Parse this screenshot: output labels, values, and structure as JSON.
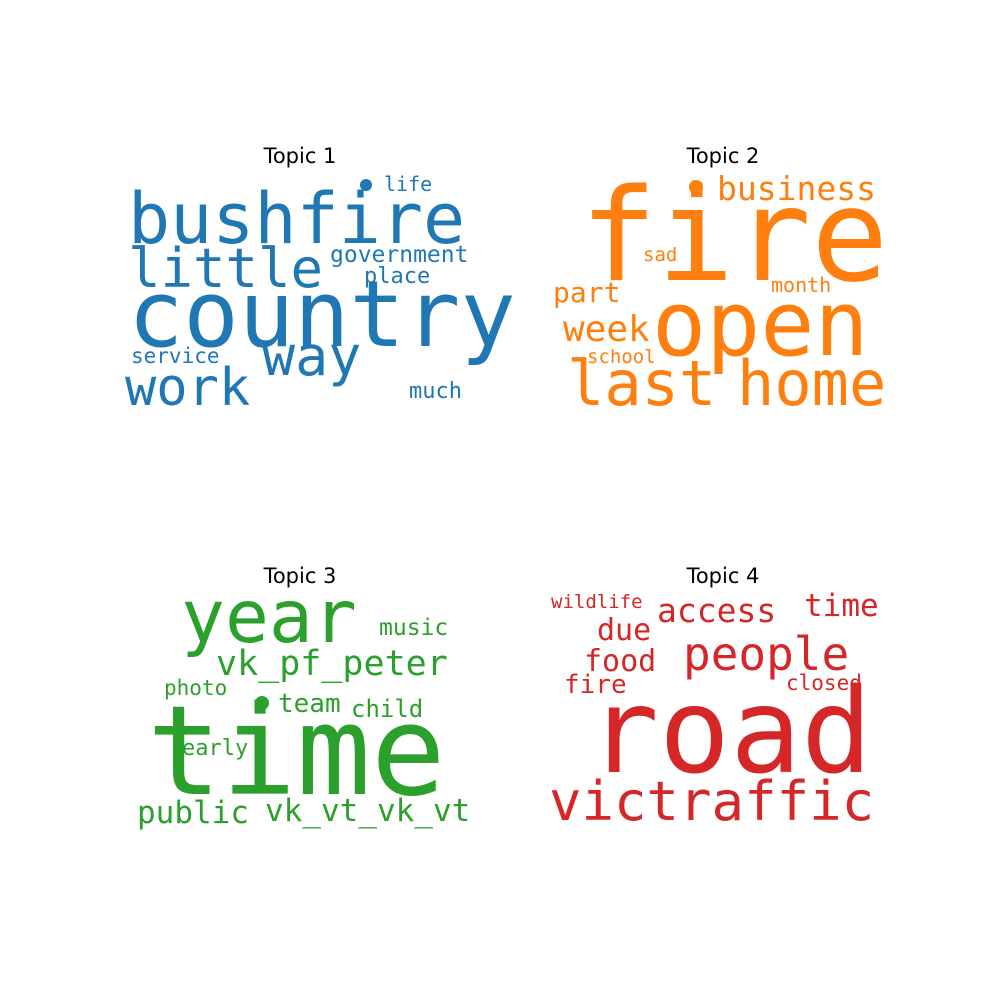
{
  "chart_data": [
    {
      "type": "wordcloud",
      "title": "Topic 1",
      "color": "#1f77b4",
      "words": [
        {
          "text": "country",
          "weight": 1.0
        },
        {
          "text": "bushfire",
          "weight": 0.88
        },
        {
          "text": "little",
          "weight": 0.66
        },
        {
          "text": "way",
          "weight": 0.62
        },
        {
          "text": "work",
          "weight": 0.58
        },
        {
          "text": "government",
          "weight": 0.3
        },
        {
          "text": "place",
          "weight": 0.27
        },
        {
          "text": "life",
          "weight": 0.26
        },
        {
          "text": "service",
          "weight": 0.26
        },
        {
          "text": "much",
          "weight": 0.26
        }
      ]
    },
    {
      "type": "wordcloud",
      "title": "Topic 2",
      "color": "#ff7f0e",
      "words": [
        {
          "text": "fire",
          "weight": 1.0
        },
        {
          "text": "open",
          "weight": 0.78
        },
        {
          "text": "home",
          "weight": 0.53
        },
        {
          "text": "last",
          "weight": 0.53
        },
        {
          "text": "week",
          "weight": 0.32
        },
        {
          "text": "business",
          "weight": 0.3
        },
        {
          "text": "part",
          "weight": 0.27
        },
        {
          "text": "month",
          "weight": 0.2
        },
        {
          "text": "school",
          "weight": 0.2
        },
        {
          "text": "sad",
          "weight": 0.19
        }
      ]
    },
    {
      "type": "wordcloud",
      "title": "Topic 3",
      "color": "#2ca02c",
      "words": [
        {
          "text": "time",
          "weight": 1.0
        },
        {
          "text": "year",
          "weight": 0.72
        },
        {
          "text": "vk_pf_peter",
          "weight": 0.33
        },
        {
          "text": "public",
          "weight": 0.3
        },
        {
          "text": "vk_vt_vk_vt",
          "weight": 0.3
        },
        {
          "text": "team",
          "weight": 0.26
        },
        {
          "text": "music",
          "weight": 0.24
        },
        {
          "text": "child",
          "weight": 0.24
        },
        {
          "text": "early",
          "weight": 0.23
        },
        {
          "text": "photo",
          "weight": 0.22
        }
      ]
    },
    {
      "type": "wordcloud",
      "title": "Topic 4",
      "color": "#d62728",
      "words": [
        {
          "text": "road",
          "weight": 1.0
        },
        {
          "text": "victraffic",
          "weight": 0.48
        },
        {
          "text": "people",
          "weight": 0.42
        },
        {
          "text": "access",
          "weight": 0.3
        },
        {
          "text": "time",
          "weight": 0.29
        },
        {
          "text": "due",
          "weight": 0.26
        },
        {
          "text": "food",
          "weight": 0.26
        },
        {
          "text": "fire",
          "weight": 0.24
        },
        {
          "text": "closed",
          "weight": 0.2
        },
        {
          "text": "wildlife",
          "weight": 0.19
        }
      ]
    }
  ]
}
